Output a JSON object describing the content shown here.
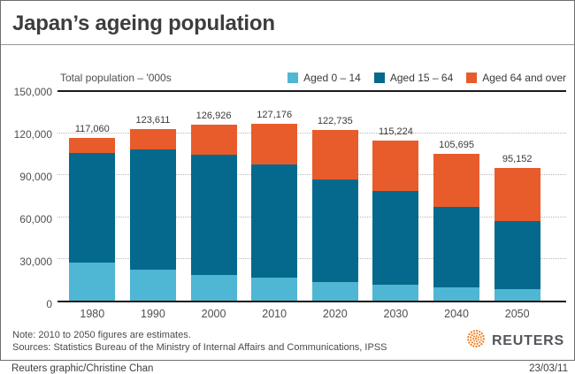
{
  "title": "Japan’s ageing population",
  "colors": {
    "aged_0_14": "#4FB6D3",
    "aged_15_64": "#04698C",
    "aged_65_over": "#E85C2B",
    "reuters_orange": "#F37E20",
    "axis_line": "#1a1a1a",
    "gridline": "#b8b8b8"
  },
  "chart_data": {
    "type": "bar",
    "stacked": true,
    "title": "Japan’s ageing population",
    "unit_label": "Total population – '000s",
    "xlabel": "",
    "ylabel": "Total population – '000s",
    "categories": [
      "1980",
      "1990",
      "2000",
      "2010",
      "2020",
      "2030",
      "2040",
      "2050"
    ],
    "series": [
      {
        "name": "Aged 0 – 14",
        "color": "#4FB6D3",
        "values": [
          27507,
          22486,
          18472,
          16803,
          13201,
          11150,
          9833,
          8214
        ]
      },
      {
        "name": "Aged 15 – 64",
        "color": "#04698C",
        "values": [
          78835,
          85904,
          86220,
          81032,
          73635,
          67404,
          57335,
          49297
        ]
      },
      {
        "name": "Aged 64 and over",
        "color": "#E85C2B",
        "values": [
          10647,
          14895,
          22005,
          29246,
          35899,
          36670,
          38527,
          37641
        ]
      }
    ],
    "total_labels": [
      "117,060",
      "123,611",
      "126,926",
      "127,176",
      "122,735",
      "115,224",
      "105,695",
      "95,152"
    ],
    "ylim": [
      0,
      150000
    ],
    "yticks": [
      {
        "value": 0,
        "label": "0"
      },
      {
        "value": 30000,
        "label": "30,000"
      },
      {
        "value": 60000,
        "label": "60,000"
      },
      {
        "value": 90000,
        "label": "90,000"
      },
      {
        "value": 120000,
        "label": "120,000"
      },
      {
        "value": 150000,
        "label": "150,000"
      }
    ],
    "grid": "horizontal-dotted",
    "legend_position": "top-right",
    "note": "2010 to 2050 figures are estimates"
  },
  "notes": {
    "note": "Note: 2010 to 2050 figures are estimates.",
    "sources": "Sources: Statistics Bureau of the Ministry of Internal Affairs and Communications, IPSS"
  },
  "branding": {
    "wordmark": "REUTERS"
  },
  "footer": {
    "credit": "Reuters graphic/Christine Chan",
    "date": "23/03/11"
  }
}
